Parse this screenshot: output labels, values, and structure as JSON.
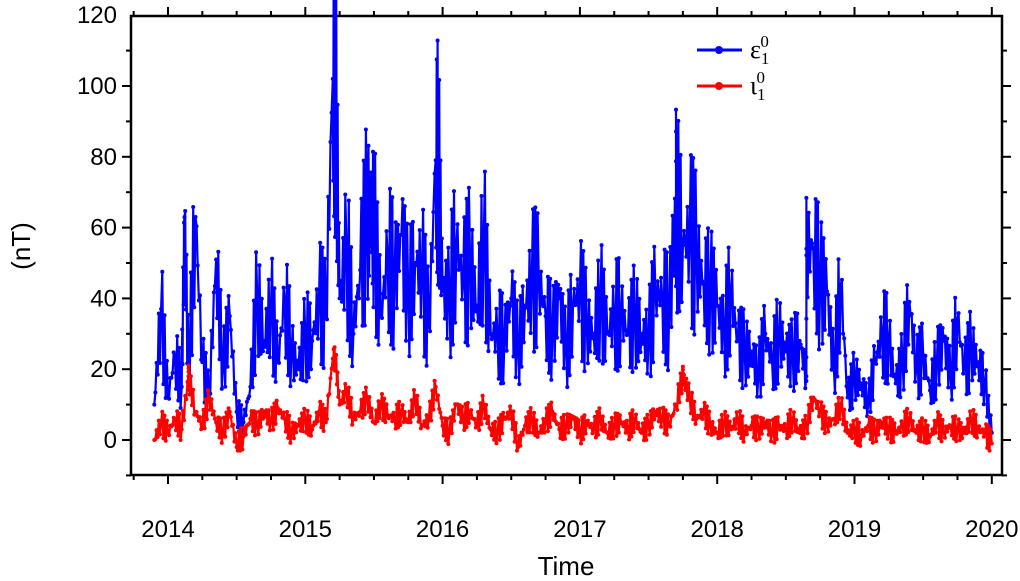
{
  "chart_data": {
    "type": "line",
    "title": "",
    "xlabel": "Time",
    "ylabel": "(nT)",
    "xlim": [
      2013.7,
      2020.3
    ],
    "ylim": [
      -10,
      120
    ],
    "xticks": [
      2014,
      2015,
      2016,
      2017,
      2018,
      2019,
      2020
    ],
    "xtick_labels": [
      "2014",
      "2015",
      "2016",
      "2017",
      "2018",
      "2019",
      "2020"
    ],
    "yticks": [
      0,
      20,
      40,
      60,
      80,
      100,
      120
    ],
    "ytick_labels": [
      "0",
      "20",
      "40",
      "60",
      "80",
      "100",
      "120"
    ],
    "grid": false,
    "legend_position": "top-right",
    "series": [
      {
        "name": "ε10",
        "legend_symbol": "ε",
        "legend_sub": "1",
        "legend_sup": "0",
        "color": "#0000ff",
        "x": [
          2013.9,
          2013.95,
          2014.0,
          2014.05,
          2014.1,
          2014.15,
          2014.2,
          2014.25,
          2014.3,
          2014.35,
          2014.4,
          2014.45,
          2014.5,
          2014.55,
          2014.6,
          2014.65,
          2014.7,
          2014.75,
          2014.8,
          2014.85,
          2014.9,
          2014.95,
          2015.0,
          2015.05,
          2015.1,
          2015.15,
          2015.2,
          2015.25,
          2015.3,
          2015.35,
          2015.4,
          2015.45,
          2015.5,
          2015.55,
          2015.6,
          2015.65,
          2015.7,
          2015.75,
          2015.8,
          2015.85,
          2015.9,
          2015.95,
          2016.0,
          2016.05,
          2016.1,
          2016.15,
          2016.2,
          2016.25,
          2016.3,
          2016.35,
          2016.4,
          2016.45,
          2016.5,
          2016.55,
          2016.6,
          2016.65,
          2016.7,
          2016.75,
          2016.8,
          2016.85,
          2016.9,
          2016.95,
          2017.0,
          2017.05,
          2017.1,
          2017.15,
          2017.2,
          2017.25,
          2017.3,
          2017.35,
          2017.4,
          2017.45,
          2017.5,
          2017.55,
          2017.6,
          2017.65,
          2017.7,
          2017.75,
          2017.8,
          2017.85,
          2017.9,
          2017.95,
          2018.0,
          2018.05,
          2018.1,
          2018.15,
          2018.2,
          2018.25,
          2018.3,
          2018.35,
          2018.4,
          2018.45,
          2018.5,
          2018.55,
          2018.6,
          2018.65,
          2018.7,
          2018.75,
          2018.8,
          2018.85,
          2018.9,
          2018.95,
          2019.0,
          2019.05,
          2019.1,
          2019.15,
          2019.2,
          2019.25,
          2019.3,
          2019.35,
          2019.4,
          2019.45,
          2019.5,
          2019.55,
          2019.6,
          2019.65,
          2019.7,
          2019.75,
          2019.8,
          2019.85,
          2019.9,
          2019.95,
          2020.0
        ],
        "y": [
          10,
          37,
          12,
          24,
          15,
          18,
          63,
          22,
          12,
          51,
          20,
          35,
          8,
          5,
          15,
          41,
          28,
          38,
          22,
          40,
          25,
          20,
          30,
          28,
          40,
          35,
          102,
          40,
          55,
          30,
          48,
          63,
          60,
          35,
          52,
          45,
          58,
          40,
          50,
          48,
          32,
          79,
          42,
          40,
          55,
          45,
          50,
          38,
          57,
          30,
          30,
          28,
          40,
          25,
          38,
          45,
          46,
          35,
          30,
          40,
          25,
          38,
          42,
          32,
          30,
          40,
          30,
          35,
          36,
          30,
          35,
          30,
          28,
          42,
          40,
          35,
          67,
          55,
          58,
          52,
          44,
          42,
          38,
          30,
          42,
          28,
          25,
          25,
          18,
          30,
          22,
          30,
          25,
          24,
          28,
          18,
          54,
          44,
          42,
          20,
          44,
          12,
          18,
          16,
          10,
          22,
          30,
          28,
          16,
          22,
          39,
          20,
          24,
          14,
          22,
          28,
          18,
          34,
          20,
          26,
          22,
          16,
          2
        ],
        "peaks": [
          [
            2015.22,
            102
          ],
          [
            2015.97,
            79
          ],
          [
            2017.7,
            67
          ],
          [
            2014.12,
            63
          ],
          [
            2015.48,
            63
          ],
          [
            2018.65,
            54
          ]
        ]
      },
      {
        "name": "ι10",
        "legend_symbol": "ι",
        "legend_sub": "1",
        "legend_sup": "0",
        "color": "#ff0000",
        "x": [
          2013.9,
          2013.95,
          2014.0,
          2014.05,
          2014.1,
          2014.15,
          2014.2,
          2014.25,
          2014.3,
          2014.35,
          2014.4,
          2014.45,
          2014.5,
          2014.55,
          2014.6,
          2014.65,
          2014.7,
          2014.75,
          2014.8,
          2014.85,
          2014.9,
          2014.95,
          2015.0,
          2015.05,
          2015.1,
          2015.15,
          2015.2,
          2015.25,
          2015.3,
          2015.35,
          2015.4,
          2015.45,
          2015.5,
          2015.55,
          2015.6,
          2015.65,
          2015.7,
          2015.75,
          2015.8,
          2015.85,
          2015.9,
          2015.95,
          2016.0,
          2016.05,
          2016.1,
          2016.15,
          2016.2,
          2016.25,
          2016.3,
          2016.35,
          2016.4,
          2016.45,
          2016.5,
          2016.55,
          2016.6,
          2016.65,
          2016.7,
          2016.75,
          2016.8,
          2016.85,
          2016.9,
          2016.95,
          2017.0,
          2017.05,
          2017.1,
          2017.15,
          2017.2,
          2017.25,
          2017.3,
          2017.35,
          2017.4,
          2017.45,
          2017.5,
          2017.55,
          2017.6,
          2017.65,
          2017.7,
          2017.75,
          2017.8,
          2017.85,
          2017.9,
          2017.95,
          2018.0,
          2018.05,
          2018.1,
          2018.15,
          2018.2,
          2018.25,
          2018.3,
          2018.35,
          2018.4,
          2018.45,
          2018.5,
          2018.55,
          2018.6,
          2018.65,
          2018.7,
          2018.75,
          2018.8,
          2018.85,
          2018.9,
          2018.95,
          2019.0,
          2019.05,
          2019.1,
          2019.15,
          2019.2,
          2019.25,
          2019.3,
          2019.35,
          2019.4,
          2019.45,
          2019.5,
          2019.55,
          2019.6,
          2019.65,
          2019.7,
          2019.75,
          2019.8,
          2019.85,
          2019.9,
          2019.95,
          2020.0
        ],
        "y": [
          0,
          5,
          2,
          6,
          3,
          18,
          8,
          4,
          12,
          5,
          2,
          8,
          -2,
          1,
          6,
          4,
          8,
          5,
          9,
          6,
          2,
          4,
          6,
          3,
          8,
          5,
          23,
          10,
          14,
          6,
          8,
          12,
          5,
          10,
          7,
          6,
          8,
          5,
          12,
          4,
          6,
          15,
          4,
          2,
          10,
          6,
          8,
          4,
          10,
          3,
          2,
          6,
          8,
          -2,
          4,
          6,
          2,
          5,
          8,
          3,
          4,
          6,
          2,
          5,
          3,
          6,
          2,
          4,
          5,
          3,
          6,
          2,
          4,
          8,
          6,
          4,
          10,
          18,
          12,
          6,
          8,
          4,
          2,
          5,
          3,
          6,
          2,
          4,
          3,
          5,
          2,
          4,
          3,
          6,
          2,
          4,
          12,
          8,
          4,
          6,
          10,
          2,
          3,
          1,
          4,
          2,
          5,
          3,
          2,
          4,
          6,
          2,
          3,
          1,
          5,
          2,
          4,
          3,
          2,
          6,
          3,
          2,
          -1
        ],
        "peaks": [
          [
            2015.22,
            23
          ],
          [
            2014.15,
            18
          ],
          [
            2017.75,
            18
          ]
        ]
      }
    ]
  }
}
